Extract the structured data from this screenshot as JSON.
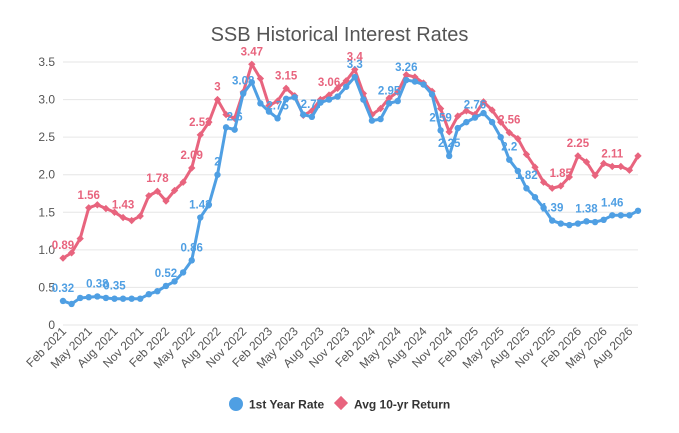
{
  "chart_data": {
    "type": "line",
    "title": "SSB Historical Interest Rates",
    "ylim": [
      0,
      3.5
    ],
    "yticks": [
      "0",
      "0.5",
      "1.0",
      "1.5",
      "2.0",
      "2.5",
      "3.0",
      "3.5"
    ],
    "xtick_labels": [
      "Feb 2021",
      "May 2021",
      "Aug 2021",
      "Nov 2021",
      "Feb 2022",
      "May 2022",
      "Aug 2022",
      "Nov 2022",
      "Feb 2023",
      "May 2023",
      "Aug 2023",
      "Nov 2023",
      "Feb 2024",
      "May 2024",
      "Aug 2024",
      "Nov 2024",
      "Feb 2025",
      "May 2025",
      "Aug 2025",
      "Nov 2025",
      "Feb 2026",
      "May 2026",
      "Aug 2026"
    ],
    "grid": true,
    "legend_position": "bottom",
    "series": [
      {
        "name": "1st Year Rate",
        "color": "#4f9fe3",
        "values": [
          0.32,
          0.28,
          0.36,
          0.37,
          0.38,
          0.36,
          0.35,
          0.35,
          0.35,
          0.35,
          0.41,
          0.45,
          0.52,
          0.58,
          0.7,
          0.86,
          1.43,
          1.6,
          2.0,
          2.63,
          2.6,
          3.08,
          3.23,
          2.95,
          2.84,
          2.75,
          3.01,
          3.03,
          2.8,
          2.77,
          2.96,
          3.0,
          3.04,
          3.17,
          3.3,
          3.0,
          2.72,
          2.74,
          2.95,
          2.98,
          3.26,
          3.24,
          3.2,
          3.07,
          2.59,
          2.25,
          2.62,
          2.7,
          2.76,
          2.82,
          2.7,
          2.5,
          2.2,
          2.05,
          1.82,
          1.7,
          1.56,
          1.39,
          1.35,
          1.33,
          1.35,
          1.38,
          1.37,
          1.4,
          1.46,
          1.46,
          1.46,
          1.52
        ],
        "labels": [
          "0.32",
          "0.38",
          "0.35",
          "0.52",
          "0.86",
          "1.43",
          "2",
          "2.6",
          "3.08",
          "2.75",
          "2.77",
          "3.3",
          "2.95",
          "3.26",
          "2.59",
          "2.25",
          "2.76",
          "2.2",
          "1.82",
          "1.39",
          "1.38",
          "1.46"
        ]
      },
      {
        "name": "Avg 10-yr Return",
        "color": "#e8647e",
        "values": [
          0.89,
          0.96,
          1.15,
          1.56,
          1.6,
          1.55,
          1.5,
          1.43,
          1.39,
          1.45,
          1.72,
          1.78,
          1.65,
          1.79,
          1.9,
          2.09,
          2.53,
          2.7,
          3.0,
          2.8,
          2.75,
          3.1,
          3.47,
          3.28,
          2.92,
          2.98,
          3.15,
          3.05,
          2.79,
          2.85,
          3.0,
          3.06,
          3.15,
          3.25,
          3.4,
          3.08,
          2.8,
          2.88,
          3.02,
          3.1,
          3.33,
          3.3,
          3.22,
          3.11,
          2.88,
          2.57,
          2.78,
          2.85,
          2.8,
          2.97,
          2.86,
          2.7,
          2.56,
          2.48,
          2.27,
          2.1,
          1.9,
          1.82,
          1.85,
          1.97,
          2.25,
          2.17,
          1.99,
          2.15,
          2.11,
          2.11,
          2.06,
          2.25
        ],
        "labels": [
          "0.89",
          "1.56",
          "1.43",
          "1.78",
          "2.09",
          "2.53",
          "3",
          "3.47",
          "3.15",
          "3.06",
          "3.4",
          "2.56",
          "1.85",
          "2.25",
          "2.11"
        ]
      }
    ]
  }
}
